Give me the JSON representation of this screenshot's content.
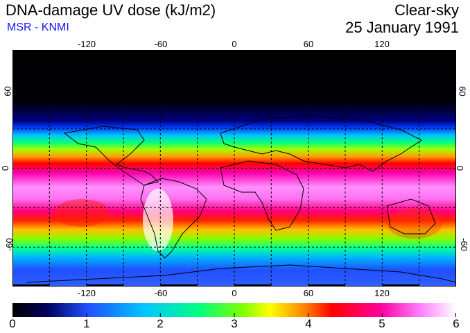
{
  "header": {
    "title": "DNA-damage UV dose (kJ/m2)",
    "subtitle": "MSR - KNMI",
    "condition": "Clear-sky",
    "date": "25 January 1991"
  },
  "map": {
    "projection": "equirectangular",
    "lon_range": [
      -180,
      180
    ],
    "lat_range": [
      -90,
      90
    ],
    "grid_lon_step": 30,
    "grid_lat_step": 30,
    "lon_labels": [
      "-120",
      "-60",
      "0",
      "60",
      "120"
    ],
    "lat_labels": [
      "60",
      "0",
      "-60"
    ],
    "colormap": [
      "#000000",
      "#0000a0",
      "#2050ff",
      "#00c8ff",
      "#00ff80",
      "#80ff00",
      "#ffff00",
      "#ff8000",
      "#ff0000",
      "#ff00a0",
      "#ff80ff",
      "#ffffff"
    ]
  },
  "colorbar": {
    "min": 0,
    "max": 6,
    "ticks": [
      "0",
      "1",
      "2",
      "3",
      "4",
      "5",
      "6"
    ]
  }
}
